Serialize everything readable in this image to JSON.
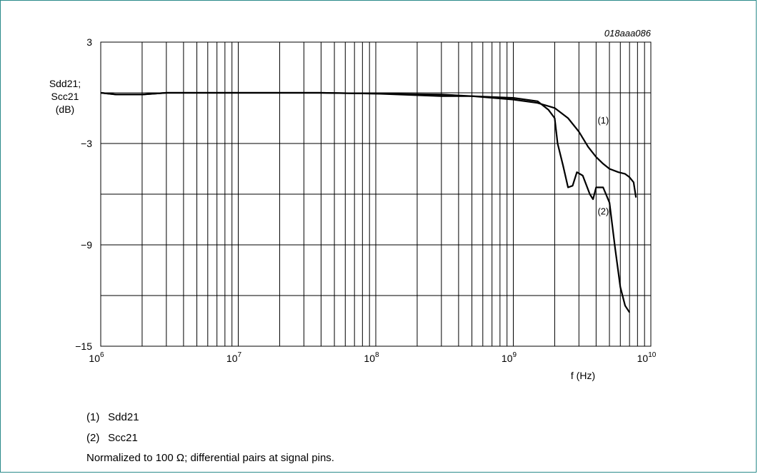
{
  "figure_id": "018aaa086",
  "chart_data": {
    "type": "line",
    "ylabel_lines": [
      "Sdd21;",
      "Scc21",
      "(dB)"
    ],
    "xlabel": "f (Hz)",
    "x_scale": "log",
    "xlim": [
      1000000,
      10000000000
    ],
    "ylim": [
      -15,
      3
    ],
    "y_ticks": [
      3,
      -3,
      -9,
      -15
    ],
    "y_tick_labels": [
      "3",
      "−3",
      "−9",
      "−15"
    ],
    "y_grid_step": 3,
    "x_tick_labels": [
      {
        "base": "10",
        "exp": "6"
      },
      {
        "base": "10",
        "exp": "7"
      },
      {
        "base": "10",
        "exp": "8"
      },
      {
        "base": "10",
        "exp": "9"
      },
      {
        "base": "10",
        "exp": "10"
      }
    ],
    "grid": true,
    "series": [
      {
        "name": "(1)",
        "color": "#000000",
        "x": [
          1000000,
          1300000,
          2000000,
          3000000,
          10000000,
          40000000,
          100000000,
          300000000,
          500000000,
          1000000000,
          1500000000,
          2000000000,
          2500000000,
          3000000000,
          3500000000,
          4000000000,
          4500000000,
          5000000000,
          5800000000,
          6500000000,
          7000000000,
          7500000000,
          7800000000
        ],
        "y": [
          0,
          -0.1,
          -0.1,
          0,
          0,
          0,
          -0.05,
          -0.1,
          -0.2,
          -0.4,
          -0.6,
          -0.9,
          -1.5,
          -2.3,
          -3.2,
          -3.8,
          -4.2,
          -4.5,
          -4.7,
          -4.8,
          -5.0,
          -5.3,
          -6.2
        ]
      },
      {
        "name": "(2)",
        "color": "#000000",
        "x": [
          1000000,
          1300000,
          2000000,
          3000000,
          10000000,
          40000000,
          100000000,
          300000000,
          500000000,
          1000000000,
          1500000000,
          1800000000,
          2000000000,
          2100000000,
          2300000000,
          2500000000,
          2700000000,
          2900000000,
          3200000000,
          3600000000,
          3800000000,
          4000000000,
          4500000000,
          5000000000,
          5500000000,
          6000000000,
          6500000000,
          7000000000
        ],
        "y": [
          0,
          -0.1,
          -0.1,
          0,
          0,
          0,
          -0.05,
          -0.2,
          -0.2,
          -0.3,
          -0.5,
          -1.0,
          -1.5,
          -3.0,
          -4.3,
          -5.6,
          -5.5,
          -4.7,
          -4.9,
          -6.0,
          -6.3,
          -5.6,
          -5.6,
          -6.5,
          -9.2,
          -11.5,
          -12.6,
          -13.0
        ]
      }
    ],
    "annotations": [
      {
        "text": "(1)",
        "x": 4000000000,
        "y": -1.6
      },
      {
        "text": "(2)",
        "x": 4000000000,
        "y": -7.0
      }
    ]
  },
  "legend": [
    {
      "num": "(1)",
      "label": "Sdd21"
    },
    {
      "num": "(2)",
      "label": "Scc21"
    }
  ],
  "note": "Normalized to 100 Ω; differential pairs at signal pins."
}
